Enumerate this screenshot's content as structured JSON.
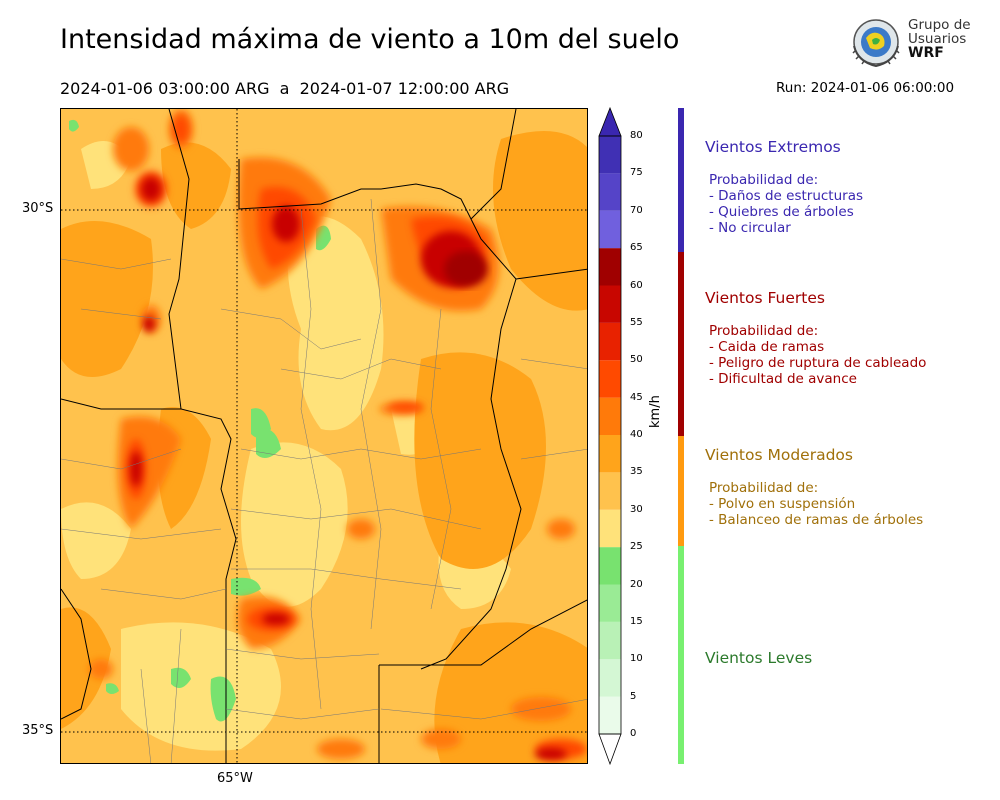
{
  "header": {
    "title": "Intensidad máxima de viento a 10m del suelo",
    "period": "2024-01-06 03:00:00 ARG  a  2024-01-07 12:00:00 ARG",
    "run": "Run: 2024-01-06 06:00:00"
  },
  "logo": {
    "line1": "Grupo de",
    "line2": "Usuarios",
    "line3": "WRF"
  },
  "map": {
    "lat_labels": [
      "30°S",
      "35°S"
    ],
    "lon_labels": [
      "65°W"
    ]
  },
  "colorbar": {
    "unit": "km/h",
    "ticks": [
      "0",
      "5",
      "10",
      "15",
      "20",
      "25",
      "30",
      "35",
      "40",
      "45",
      "50",
      "55",
      "60",
      "65",
      "70",
      "75",
      "80"
    ],
    "levels": [
      {
        "from": 0,
        "to": 5,
        "color": "#eafbea"
      },
      {
        "from": 5,
        "to": 10,
        "color": "#d4f7d4"
      },
      {
        "from": 10,
        "to": 15,
        "color": "#b9f1b6"
      },
      {
        "from": 15,
        "to": 20,
        "color": "#9aeb95"
      },
      {
        "from": 20,
        "to": 25,
        "color": "#78e26f"
      },
      {
        "from": 25,
        "to": 30,
        "color": "#ffe27a"
      },
      {
        "from": 30,
        "to": 35,
        "color": "#ffc24d"
      },
      {
        "from": 35,
        "to": 40,
        "color": "#ffa41b"
      },
      {
        "from": 40,
        "to": 45,
        "color": "#ff7a0a"
      },
      {
        "from": 45,
        "to": 50,
        "color": "#ff4a00"
      },
      {
        "from": 50,
        "to": 55,
        "color": "#e82200"
      },
      {
        "from": 55,
        "to": 60,
        "color": "#c80600"
      },
      {
        "from": 60,
        "to": 65,
        "color": "#a00000"
      },
      {
        "from": 65,
        "to": 70,
        "color": "#7060de"
      },
      {
        "from": 70,
        "to": 75,
        "color": "#5544c8"
      },
      {
        "from": 75,
        "to": 80,
        "color": "#4030b4"
      }
    ],
    "extend_min_color": "#ffffff",
    "extend_max_color": "#3a27b0"
  },
  "categories": [
    {
      "title": "Vientos Extremos",
      "color": "#3a27b0",
      "text_color": "#3a27b0",
      "lines": [
        "Probabilidad de:",
        "- Daños de estructuras",
        "- Quiebres de árboles",
        "- No circular"
      ]
    },
    {
      "title": "Vientos Fuertes",
      "color": "#a00000",
      "text_color": "#a00000",
      "lines": [
        "Probabilidad de:",
        "- Caida de ramas",
        "- Peligro de ruptura de cableado",
        "- Dificultad de avance"
      ]
    },
    {
      "title": "Vientos Moderados",
      "color": "#ff9a10",
      "text_color": "#a0700a",
      "lines": [
        "Probabilidad de:",
        "- Polvo en suspensión",
        "- Balanceo de ramas de árboles"
      ]
    },
    {
      "title": "Vientos Leves",
      "color": "#78f070",
      "text_color": "#2c7a2c",
      "lines": []
    }
  ]
}
